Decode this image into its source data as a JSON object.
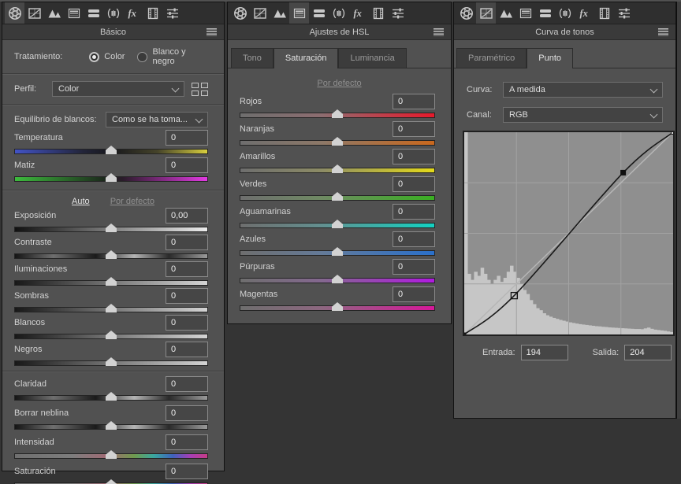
{
  "colors": {
    "panel_bg": "#515151",
    "header_bg": "#3a3a3a",
    "toolbar_bg": "#2f2f2f",
    "graph_bg": "#8f8f8f",
    "histogram": "#c6c6c6",
    "curve_line": "#181818",
    "grid_line": "#a2a2a2",
    "diagonal": "#b6b6b6"
  },
  "toolbar": {
    "icons": [
      "aperture",
      "curve-grid",
      "mountains",
      "hsl-gradient",
      "split-bars",
      "lens-parens",
      "fx",
      "film-strip",
      "mixer-sliders"
    ]
  },
  "panels": {
    "basic": {
      "title": "Básico",
      "selected_tool_index": 0,
      "treatment": {
        "label": "Tratamiento:",
        "options": [
          {
            "label": "Color",
            "selected": true
          },
          {
            "label": "Blanco y negro",
            "selected": false
          }
        ]
      },
      "profile": {
        "label": "Perfil:",
        "value": "Color"
      },
      "white_balance": {
        "label": "Equilibrio de blancos:",
        "value": "Como se ha toma..."
      },
      "wb_sliders": [
        {
          "label": "Temperatura",
          "value": "0",
          "gradient": "temp"
        },
        {
          "label": "Matiz",
          "value": "0",
          "gradient": "tint"
        }
      ],
      "auto_label": "Auto",
      "default_label": "Por defecto",
      "tone_sliders": [
        {
          "label": "Exposición",
          "value": "0,00",
          "gradient": "exposure"
        },
        {
          "label": "Contraste",
          "value": "0",
          "gradient": "contrast"
        },
        {
          "label": "Iluminaciones",
          "value": "0",
          "gradient": "gray"
        },
        {
          "label": "Sombras",
          "value": "0",
          "gradient": "gray"
        },
        {
          "label": "Blancos",
          "value": "0",
          "gradient": "gray"
        },
        {
          "label": "Negros",
          "value": "0",
          "gradient": "gray"
        }
      ],
      "presence_sliders": [
        {
          "label": "Claridad",
          "value": "0",
          "gradient": "contrast"
        },
        {
          "label": "Borrar neblina",
          "value": "0",
          "gradient": "contrast"
        },
        {
          "label": "Intensidad",
          "value": "0",
          "gradient": "vibrance"
        },
        {
          "label": "Saturación",
          "value": "0",
          "gradient": "vibrance"
        }
      ]
    },
    "hsl": {
      "title": "Ajustes de HSL",
      "selected_tool_index": 3,
      "tabs": [
        {
          "label": "Tono",
          "active": false
        },
        {
          "label": "Saturación",
          "active": true
        },
        {
          "label": "Luminancia",
          "active": false
        }
      ],
      "default_label": "Por defecto",
      "sliders": [
        {
          "label": "Rojos",
          "value": "0",
          "gradient": "red"
        },
        {
          "label": "Naranjas",
          "value": "0",
          "gradient": "orange"
        },
        {
          "label": "Amarillos",
          "value": "0",
          "gradient": "yellow"
        },
        {
          "label": "Verdes",
          "value": "0",
          "gradient": "green"
        },
        {
          "label": "Aguamarinas",
          "value": "0",
          "gradient": "aqua"
        },
        {
          "label": "Azules",
          "value": "0",
          "gradient": "blue"
        },
        {
          "label": "Púrpuras",
          "value": "0",
          "gradient": "purple"
        },
        {
          "label": "Magentas",
          "value": "0",
          "gradient": "magenta"
        }
      ]
    },
    "curve": {
      "title": "Curva de tonos",
      "selected_tool_index": 1,
      "tabs": [
        {
          "label": "Paramétrico",
          "active": false
        },
        {
          "label": "Punto",
          "active": true
        }
      ],
      "curve_select": {
        "label": "Curva:",
        "value": "A medida"
      },
      "channel_select": {
        "label": "Canal:",
        "value": "RGB"
      },
      "graph": {
        "points": [
          {
            "in": 0,
            "out": 0,
            "style": "corner"
          },
          {
            "in": 61,
            "out": 49,
            "style": "hollow"
          },
          {
            "in": 194,
            "out": 204,
            "style": "selected"
          },
          {
            "in": 255,
            "out": 255,
            "style": "corner-hollow"
          }
        ],
        "histogram": [
          1.0,
          0.3,
          0.27,
          0.31,
          0.29,
          0.33,
          0.3,
          0.27,
          0.25,
          0.27,
          0.29,
          0.26,
          0.28,
          0.31,
          0.34,
          0.31,
          0.28,
          0.25,
          0.22,
          0.2,
          0.17,
          0.15,
          0.13,
          0.12,
          0.105,
          0.095,
          0.088,
          0.082,
          0.077,
          0.072,
          0.068,
          0.064,
          0.06,
          0.057,
          0.054,
          0.051,
          0.049,
          0.047,
          0.045,
          0.043,
          0.041,
          0.04,
          0.038,
          0.037,
          0.035,
          0.034,
          0.033,
          0.032,
          0.031,
          0.03,
          0.029,
          0.028,
          0.027,
          0.027,
          0.026,
          0.03,
          0.034,
          0.028,
          0.024,
          0.022,
          0.02,
          0.018,
          0.015,
          0.012
        ]
      },
      "input": {
        "label": "Entrada:",
        "value": "194"
      },
      "output": {
        "label": "Salida:",
        "value": "204"
      }
    }
  }
}
